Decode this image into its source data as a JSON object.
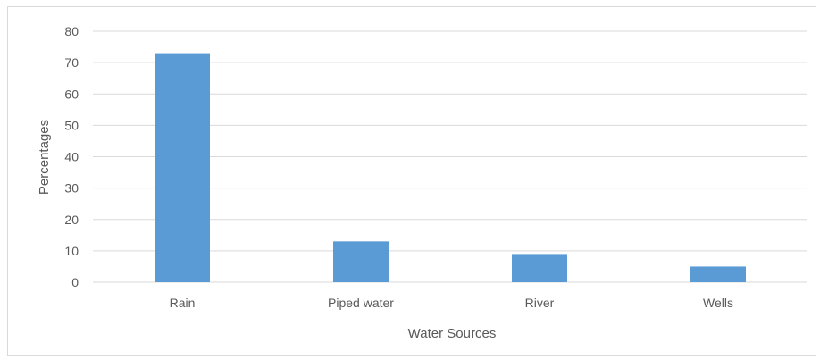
{
  "chart_data": {
    "type": "bar",
    "title": "",
    "xlabel": "Water Sources",
    "ylabel": "Percentages",
    "categories": [
      "Rain",
      "Piped water",
      "River",
      "Wells"
    ],
    "values": [
      73,
      13,
      9,
      5
    ],
    "ylim": [
      0,
      80
    ],
    "yticks": [
      0,
      10,
      20,
      30,
      40,
      50,
      60,
      70,
      80
    ],
    "grid": true,
    "legend": "none",
    "colors": {
      "bar": "#5b9bd5",
      "grid": "#d9d9d9",
      "text": "#595959"
    }
  }
}
